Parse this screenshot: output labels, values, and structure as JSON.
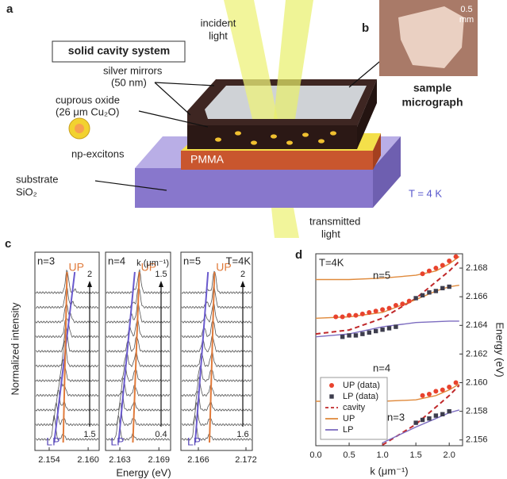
{
  "panel_labels": {
    "a": "a",
    "b": "b",
    "c": "c",
    "d": "d"
  },
  "diagram": {
    "system": "solid cavity system",
    "incident": [
      "incident",
      "light"
    ],
    "mirrors": [
      "silver mirrors",
      "(50 nm)"
    ],
    "oxide": [
      "cuprous oxide",
      "(26 μm Cu₂O)"
    ],
    "excitons": "np-excitons",
    "substrate": [
      "substrate",
      "SiO₂"
    ],
    "pmma": "PMMA",
    "temperature": "T = 4 K",
    "transmitted": [
      "transmitted",
      "light"
    ]
  },
  "micrograph": {
    "scale": [
      "0.5",
      "mm"
    ],
    "caption": [
      "sample",
      "micrograph"
    ]
  },
  "spectra": {
    "ylabel": "Normalized intensity",
    "xlabel": "Energy (eV)",
    "panels": [
      {
        "n": "n=3",
        "xlim": [
          2.1518,
          2.1617
        ],
        "xticks": [
          2.154,
          {
            "value": 2.16,
            "label": "2.160"
          }
        ],
        "k_top": 2,
        "k_bottom": 1.5,
        "up": "UP",
        "lp": "LP"
      },
      {
        "n": "n=4",
        "xlim": [
          2.1608,
          2.1708
        ],
        "xticks": [
          2.163,
          2.169
        ],
        "k_unit": "k (μm⁻¹)",
        "k_top": 1.5,
        "k_bottom": 0.4,
        "up": "UP",
        "lp": "LP"
      },
      {
        "n": "n=5",
        "xlim": [
          2.1638,
          2.1728
        ],
        "xticks": [
          2.166,
          2.172
        ],
        "temperature": "T=4K",
        "k_top": 2,
        "k_bottom": 1.6,
        "up": "UP",
        "lp": "LP"
      }
    ]
  },
  "chart_data": {
    "type": "scatter",
    "title": "T=4K",
    "xlabel": "k (μm⁻¹)",
    "ylabel": "Energy (eV)",
    "xlim": [
      0,
      2.2
    ],
    "ylim": [
      2.1556,
      2.169
    ],
    "xticks": [
      {
        "value": 0,
        "label": "0.0"
      },
      0.5,
      {
        "value": 1,
        "label": "1.0"
      },
      1.5,
      {
        "value": 2,
        "label": "2.0"
      }
    ],
    "yticks": [
      2.156,
      2.158,
      {
        "value": 2.16,
        "label": "2.160"
      },
      2.162,
      2.164,
      2.166,
      2.168
    ],
    "annotations": [
      "n=5",
      "n=4",
      "n=3"
    ],
    "legend": "lower left",
    "series": [
      {
        "name": "UP (data)",
        "color": "#e8432e",
        "marker": "circle",
        "x": [
          1.6,
          1.7,
          1.8,
          1.9,
          2.0,
          2.1,
          0.3,
          0.4,
          0.5,
          0.6,
          0.7,
          0.8,
          0.9,
          1.0,
          1.1,
          1.2,
          1.3,
          1.4,
          1.6,
          1.7,
          1.8,
          1.9,
          2.0,
          2.1
        ],
        "values": [
          2.1676,
          2.1678,
          2.168,
          2.1682,
          2.1685,
          2.1688,
          2.1646,
          2.1646,
          2.1647,
          2.1647,
          2.1648,
          2.1649,
          2.165,
          2.1651,
          2.1652,
          2.1654,
          2.1655,
          2.1657,
          2.1591,
          2.1592,
          2.1594,
          2.1595,
          2.1597,
          2.16
        ]
      },
      {
        "name": "LP (data)",
        "color": "#3d3d4d",
        "marker": "square",
        "x": [
          1.5,
          1.6,
          1.7,
          1.8,
          1.9,
          2.0,
          0.4,
          0.5,
          0.6,
          0.7,
          0.8,
          0.9,
          1.0,
          1.1,
          1.2,
          1.5,
          1.6,
          1.7,
          1.8,
          1.9,
          2.0
        ],
        "values": [
          2.1659,
          2.1661,
          2.1663,
          2.1664,
          2.1666,
          2.1667,
          2.1632,
          2.1633,
          2.1633,
          2.1634,
          2.1635,
          2.1636,
          2.1637,
          2.1638,
          2.1639,
          2.1572,
          2.1574,
          2.1575,
          2.1577,
          2.1578,
          2.158
        ]
      },
      {
        "name": "cavity",
        "color": "#c0282a",
        "line": "dashed",
        "x": [
          0,
          0.5,
          1,
          1.5,
          2,
          2.15,
          null,
          1,
          1.5,
          2,
          2.15
        ],
        "values": [
          2.1634,
          2.16368,
          2.1645,
          2.16588,
          2.1678,
          2.16848,
          null,
          2.15565,
          2.15709,
          2.1591,
          2.15982
        ]
      },
      {
        "name": "UP",
        "color": "#e08a3c",
        "line": "solid",
        "x": [
          0,
          0.5,
          1,
          1.5,
          1.8,
          2,
          2.15,
          null,
          0,
          0.5,
          1,
          1.5,
          1.8,
          2,
          2.15,
          null,
          0,
          1,
          1.5,
          1.8,
          2,
          2.15
        ],
        "values": [
          2.1672,
          2.1672,
          2.1673,
          2.1675,
          2.1678,
          2.1683,
          2.1688,
          null,
          2.1645,
          2.1646,
          2.1649,
          2.1658,
          2.1664,
          2.1667,
          2.1668,
          null,
          2.1587,
          2.1587,
          2.1588,
          2.1591,
          2.1595,
          2.1599
        ]
      },
      {
        "name": "LP",
        "color": "#7c6cc0",
        "line": "solid",
        "x": [
          0,
          0.5,
          1,
          1.5,
          2,
          2.15,
          null,
          1,
          1.5,
          1.8,
          2,
          2.15
        ],
        "values": [
          2.1632,
          2.1634,
          2.1639,
          2.1642,
          2.1643,
          2.1643,
          null,
          2.1558,
          2.1569,
          2.1575,
          2.1579,
          2.1581
        ]
      }
    ]
  }
}
